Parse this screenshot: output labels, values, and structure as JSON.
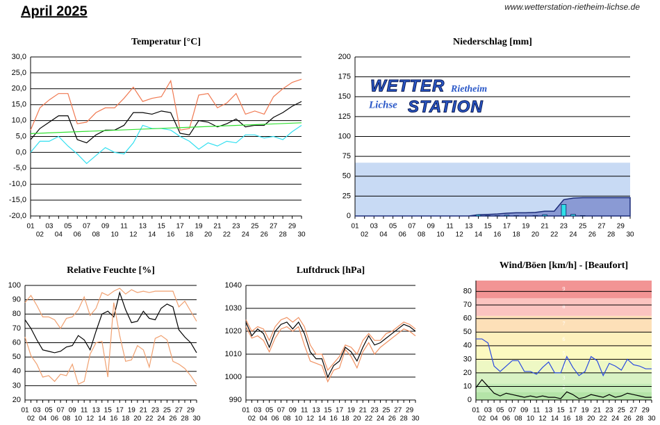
{
  "header": {
    "title": "April 2025",
    "url": "www.wetterstation-rietheim-lichse.de"
  },
  "chart_data": [
    {
      "type": "line",
      "title": "Temperatur [°C]",
      "categories": [
        "01",
        "02",
        "03",
        "04",
        "05",
        "06",
        "07",
        "08",
        "09",
        "10",
        "11",
        "12",
        "13",
        "14",
        "15",
        "16",
        "17",
        "18",
        "19",
        "20",
        "21",
        "22",
        "23",
        "24",
        "25",
        "26",
        "27",
        "28",
        "29",
        "30"
      ],
      "ylim": [
        -20,
        30
      ],
      "yticks": [
        {
          "value": -20,
          "label": "-20,0"
        },
        {
          "value": -15,
          "label": "-15,0"
        },
        {
          "value": -10,
          "label": "-10,0"
        },
        {
          "value": -5,
          "label": "-5,0"
        },
        {
          "value": 0,
          "label": "0,0"
        },
        {
          "value": 5,
          "label": "5,0"
        },
        {
          "value": 10,
          "label": "10,0"
        },
        {
          "value": 15,
          "label": "15,0"
        },
        {
          "value": 20,
          "label": "20,0"
        },
        {
          "value": 25,
          "label": "25,0"
        },
        {
          "value": 30,
          "label": "30,0"
        }
      ],
      "grid": true,
      "series": [
        {
          "color": "#f07850",
          "values": [
            7,
            14,
            16.5,
            18.5,
            18.5,
            9,
            9.5,
            12.5,
            14,
            14,
            17,
            20.5,
            16,
            17,
            17.5,
            22.5,
            7,
            7.5,
            18,
            18.5,
            14,
            15.5,
            18.5,
            12,
            13,
            12,
            17.5,
            20,
            22,
            23
          ]
        },
        {
          "color": "#000000",
          "values": [
            4,
            7.5,
            9.5,
            11.5,
            11.5,
            4,
            3,
            5.5,
            7,
            7,
            8.5,
            12.5,
            12.5,
            12,
            13,
            12.5,
            6,
            5.5,
            10,
            9.5,
            8,
            9,
            10.5,
            8,
            8.5,
            8.5,
            11,
            12.5,
            14.5,
            16
          ]
        },
        {
          "color": "#30dff0",
          "values": [
            0,
            3.5,
            3.5,
            5,
            2,
            -0.5,
            -3.5,
            -1,
            1.5,
            0,
            -0.5,
            3,
            8.5,
            7.5,
            7.5,
            7,
            5,
            3.5,
            1,
            3,
            2,
            3.5,
            3,
            5.5,
            5.5,
            4.5,
            5,
            4,
            6.5,
            8.5
          ]
        }
      ],
      "trend": {
        "color": "#30e030",
        "values": [
          5.9,
          9.3
        ]
      }
    },
    {
      "type": "bar",
      "title": "Niederschlag [mm]",
      "categories": [
        "01",
        "02",
        "03",
        "04",
        "05",
        "06",
        "07",
        "08",
        "09",
        "10",
        "11",
        "12",
        "13",
        "14",
        "15",
        "16",
        "17",
        "18",
        "19",
        "20",
        "21",
        "22",
        "23",
        "24",
        "25",
        "26",
        "27",
        "28",
        "29",
        "30"
      ],
      "ylim": [
        0,
        200
      ],
      "yticks": [
        0,
        25,
        50,
        75,
        100,
        125,
        150,
        175,
        200
      ],
      "grid": true,
      "values": [
        0,
        0,
        0,
        0,
        0,
        0,
        0,
        0,
        0,
        0,
        0,
        0,
        0,
        1.5,
        0.5,
        0.5,
        1,
        0.5,
        0,
        0.5,
        1.5,
        0,
        14.5,
        2,
        0.5,
        0,
        0,
        0,
        0,
        0
      ],
      "color": "#30e0e8",
      "background_level": 67,
      "background_color": "#c8daf4",
      "cumulative_color": "#8a9ad4",
      "logo": {
        "word1": "WETTER",
        "word2": "Rietheim",
        "word3": "Lichse",
        "word4": "STATION"
      }
    },
    {
      "type": "line",
      "title": "Relative Feuchte [%]",
      "categories": [
        "01",
        "02",
        "03",
        "04",
        "05",
        "06",
        "07",
        "08",
        "09",
        "10",
        "11",
        "12",
        "13",
        "14",
        "15",
        "16",
        "17",
        "18",
        "19",
        "20",
        "21",
        "22",
        "23",
        "24",
        "25",
        "26",
        "27",
        "28",
        "29",
        "30"
      ],
      "ylim": [
        20,
        100
      ],
      "yticks": [
        20,
        30,
        40,
        50,
        60,
        70,
        80,
        90,
        100
      ],
      "grid": true,
      "series": [
        {
          "color": "#f0a070",
          "values": [
            88,
            93,
            86,
            78,
            78,
            76,
            70,
            77,
            78,
            83,
            92,
            79,
            84,
            95,
            93,
            96,
            98,
            94,
            97,
            95,
            96,
            95,
            96,
            96,
            96,
            96,
            85,
            89,
            82,
            75
          ]
        },
        {
          "color": "#000000",
          "values": [
            76,
            70,
            62,
            55,
            54,
            53,
            54,
            57,
            58,
            65,
            62,
            55,
            68,
            80,
            82,
            78,
            95,
            83,
            74,
            75,
            82,
            77,
            76,
            84,
            87,
            85,
            69,
            64,
            60,
            53
          ]
        },
        {
          "color": "#f0a070",
          "values": [
            64,
            51,
            45,
            36,
            37,
            33,
            38,
            37,
            45,
            31,
            33,
            52,
            60,
            61,
            36,
            88,
            65,
            47,
            48,
            58,
            55,
            43,
            63,
            65,
            62,
            47,
            45,
            42,
            37,
            31
          ]
        }
      ]
    },
    {
      "type": "line",
      "title": "Luftdruck [hPa]",
      "categories": [
        "01",
        "02",
        "03",
        "04",
        "05",
        "06",
        "07",
        "08",
        "09",
        "10",
        "11",
        "12",
        "13",
        "14",
        "15",
        "16",
        "17",
        "18",
        "19",
        "20",
        "21",
        "22",
        "23",
        "24",
        "25",
        "26",
        "27",
        "28",
        "29",
        "30"
      ],
      "ylim": [
        990,
        1040
      ],
      "yticks": [
        990,
        1000,
        1010,
        1020,
        1030,
        1040
      ],
      "grid": true,
      "series": [
        {
          "color": "#f09060",
          "values": [
            1025,
            1020,
            1022,
            1021,
            1016,
            1022,
            1025,
            1026,
            1024,
            1026,
            1022,
            1014,
            1010,
            1010,
            1003,
            1006,
            1009,
            1014,
            1013,
            1010,
            1016,
            1019,
            1016,
            1016,
            1019,
            1020,
            1022,
            1024,
            1023,
            1021
          ]
        },
        {
          "color": "#f09060",
          "values": [
            1022,
            1017,
            1018,
            1016,
            1011,
            1017,
            1021,
            1022,
            1020,
            1022,
            1014,
            1007,
            1006,
            1005,
            998,
            1003,
            1004,
            1012,
            1009,
            1004,
            1011,
            1015,
            1010,
            1013,
            1015,
            1017,
            1019,
            1021,
            1020,
            1018
          ]
        },
        {
          "color": "#000000",
          "values": [
            1024,
            1018,
            1021,
            1019,
            1013,
            1020,
            1023,
            1024,
            1021,
            1024,
            1019,
            1011,
            1008,
            1008,
            1000,
            1005,
            1007,
            1013,
            1011,
            1007,
            1013,
            1018,
            1014,
            1015,
            1017,
            1019,
            1021,
            1023,
            1022,
            1020
          ]
        }
      ]
    },
    {
      "type": "wind",
      "title": "Wind/Böen [km/h] - [Beaufort]",
      "categories": [
        "01",
        "02",
        "03",
        "04",
        "05",
        "06",
        "07",
        "08",
        "09",
        "10",
        "11",
        "12",
        "13",
        "14",
        "15",
        "16",
        "17",
        "18",
        "19",
        "20",
        "21",
        "22",
        "23",
        "24",
        "25",
        "26",
        "27",
        "28",
        "29",
        "30"
      ],
      "ylim": [
        0,
        88
      ],
      "yticks": [
        0,
        10,
        20,
        30,
        40,
        50,
        60,
        70,
        80
      ],
      "grid": true,
      "bands": [
        {
          "from": 0,
          "to": 6,
          "color": "#b4e4a8"
        },
        {
          "label": "2",
          "from": 6,
          "to": 12,
          "color": "#c4ecb8"
        },
        {
          "label": "3",
          "from": 12,
          "to": 20,
          "color": "#d8f2c4"
        },
        {
          "label": "4",
          "from": 20,
          "to": 29,
          "color": "#eef8c4"
        },
        {
          "label": "5",
          "from": 29,
          "to": 39,
          "color": "#fcfac0"
        },
        {
          "label": "6",
          "from": 39,
          "to": 50,
          "color": "#fdf0bc"
        },
        {
          "label": "7",
          "from": 50,
          "to": 62,
          "color": "#fde0b8"
        },
        {
          "label": "8",
          "from": 62,
          "to": 75,
          "color": "#fbc4c0"
        },
        {
          "label": "9",
          "from": 75,
          "to": 88,
          "color": "#f29494"
        }
      ],
      "series": [
        {
          "color": "#2848e0",
          "values": [
            45,
            45,
            42,
            25,
            21,
            25,
            29,
            29,
            21,
            21,
            19,
            24,
            28,
            20,
            20,
            32,
            24,
            18,
            21,
            32,
            29,
            18,
            27,
            25,
            22,
            30,
            26,
            25,
            23,
            23
          ]
        },
        {
          "color": "#000000",
          "values": [
            9,
            15,
            10,
            5,
            3,
            5,
            4,
            3,
            2,
            3,
            2,
            3,
            2,
            2,
            1,
            6,
            4,
            1,
            2,
            4,
            3,
            2,
            4,
            2,
            3,
            5,
            4,
            3,
            2,
            2
          ]
        }
      ]
    }
  ]
}
